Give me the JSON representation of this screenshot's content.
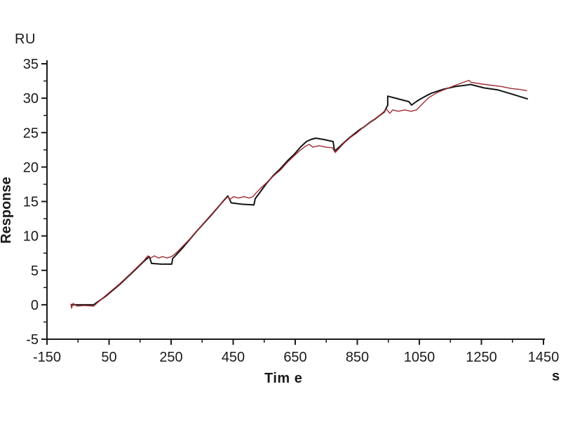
{
  "figure": {
    "y_unit_label": "RU",
    "y_axis_title": "Response",
    "x_axis_title": "Tim e",
    "x_unit_label": "s"
  },
  "colors": {
    "axis": "#1a1a1a",
    "tick_text": "#1a1a1a",
    "background": "#ffffff",
    "fit_curve": "#141414",
    "measured_curve": "#a12c32"
  },
  "chart_data": {
    "type": "line",
    "title": "",
    "xlabel": "Tim e",
    "ylabel": "Response",
    "x_unit": "s",
    "y_unit": "RU",
    "xlim": [
      -150,
      1450
    ],
    "ylim": [
      -5,
      35
    ],
    "x_major_ticks": [
      -150,
      50,
      250,
      450,
      650,
      850,
      1050,
      1250,
      1450
    ],
    "x_minor_step": 100,
    "y_major_ticks": [
      -5,
      0,
      5,
      10,
      15,
      20,
      25,
      30,
      35
    ],
    "y_minor_step": 2.5,
    "grid": false,
    "legend_position": "none",
    "series": [
      {
        "name": "fitted-curve",
        "color": "#141414",
        "stroke_width": 2,
        "points": [
          [
            -71,
            0.0
          ],
          [
            0,
            0.0
          ],
          [
            38,
            1.2
          ],
          [
            83,
            2.9
          ],
          [
            128,
            4.8
          ],
          [
            162,
            6.3
          ],
          [
            180,
            7.0
          ],
          [
            187,
            6.0
          ],
          [
            218,
            5.9
          ],
          [
            252,
            5.9
          ],
          [
            255,
            6.7
          ],
          [
            286,
            8.2
          ],
          [
            331,
            10.6
          ],
          [
            377,
            12.9
          ],
          [
            417,
            15.0
          ],
          [
            433,
            15.8
          ],
          [
            444,
            14.8
          ],
          [
            478,
            14.6
          ],
          [
            517,
            14.5
          ],
          [
            521,
            15.4
          ],
          [
            557,
            17.6
          ],
          [
            580,
            18.8
          ],
          [
            603,
            19.8
          ],
          [
            625,
            20.9
          ],
          [
            648,
            21.9
          ],
          [
            667,
            22.9
          ],
          [
            686,
            23.7
          ],
          [
            700,
            24.0
          ],
          [
            716,
            24.2
          ],
          [
            743,
            24.0
          ],
          [
            772,
            23.7
          ],
          [
            777,
            22.3
          ],
          [
            806,
            23.5
          ],
          [
            823,
            24.2
          ],
          [
            840,
            24.8
          ],
          [
            857,
            25.4
          ],
          [
            874,
            25.9
          ],
          [
            891,
            26.5
          ],
          [
            908,
            27.0
          ],
          [
            922,
            27.5
          ],
          [
            937,
            28.0
          ],
          [
            948,
            29.0
          ],
          [
            948,
            30.3
          ],
          [
            982,
            29.9
          ],
          [
            1016,
            29.5
          ],
          [
            1025,
            29.0
          ],
          [
            1040,
            29.5
          ],
          [
            1054,
            29.9
          ],
          [
            1070,
            30.3
          ],
          [
            1088,
            30.7
          ],
          [
            1107,
            31.0
          ],
          [
            1127,
            31.3
          ],
          [
            1147,
            31.5
          ],
          [
            1167,
            31.7
          ],
          [
            1185,
            31.8
          ],
          [
            1201,
            31.9
          ],
          [
            1215,
            32.0
          ],
          [
            1258,
            31.5
          ],
          [
            1303,
            31.2
          ],
          [
            1348,
            30.6
          ],
          [
            1398,
            29.9
          ]
        ]
      },
      {
        "name": "measured-response",
        "color": "#a12c32",
        "stroke_width": 1.4,
        "points": [
          [
            -73,
            0.1
          ],
          [
            -71,
            -0.5
          ],
          [
            -66,
            0.2
          ],
          [
            -53,
            -0.2
          ],
          [
            -30,
            -0.1
          ],
          [
            0,
            -0.2
          ],
          [
            38,
            1.3
          ],
          [
            83,
            3.0
          ],
          [
            128,
            4.9
          ],
          [
            162,
            6.4
          ],
          [
            175,
            7.1
          ],
          [
            184,
            6.8
          ],
          [
            196,
            7.1
          ],
          [
            209,
            6.8
          ],
          [
            223,
            7.0
          ],
          [
            236,
            6.8
          ],
          [
            252,
            7.0
          ],
          [
            268,
            7.6
          ],
          [
            309,
            9.5
          ],
          [
            354,
            11.8
          ],
          [
            399,
            14.1
          ],
          [
            433,
            15.7
          ],
          [
            440,
            15.3
          ],
          [
            451,
            15.7
          ],
          [
            467,
            15.5
          ],
          [
            485,
            15.7
          ],
          [
            501,
            15.5
          ],
          [
            514,
            15.7
          ],
          [
            523,
            16.2
          ],
          [
            540,
            17.0
          ],
          [
            557,
            17.7
          ],
          [
            580,
            18.7
          ],
          [
            603,
            19.6
          ],
          [
            625,
            20.7
          ],
          [
            648,
            21.7
          ],
          [
            665,
            22.4
          ],
          [
            682,
            23.0
          ],
          [
            695,
            23.3
          ],
          [
            707,
            22.9
          ],
          [
            727,
            23.1
          ],
          [
            749,
            22.9
          ],
          [
            770,
            22.8
          ],
          [
            779,
            22.1
          ],
          [
            795,
            22.9
          ],
          [
            810,
            23.6
          ],
          [
            828,
            24.3
          ],
          [
            847,
            24.9
          ],
          [
            865,
            25.6
          ],
          [
            883,
            26.2
          ],
          [
            901,
            26.8
          ],
          [
            919,
            27.4
          ],
          [
            932,
            27.9
          ],
          [
            944,
            28.4
          ],
          [
            955,
            27.8
          ],
          [
            964,
            28.3
          ],
          [
            982,
            28.1
          ],
          [
            1003,
            28.3
          ],
          [
            1023,
            28.1
          ],
          [
            1041,
            28.3
          ],
          [
            1054,
            28.9
          ],
          [
            1067,
            29.5
          ],
          [
            1081,
            30.1
          ],
          [
            1096,
            30.5
          ],
          [
            1111,
            30.9
          ],
          [
            1128,
            31.2
          ],
          [
            1145,
            31.5
          ],
          [
            1162,
            31.8
          ],
          [
            1179,
            32.1
          ],
          [
            1192,
            32.3
          ],
          [
            1204,
            32.5
          ],
          [
            1210,
            32.6
          ],
          [
            1217,
            32.3
          ],
          [
            1246,
            32.1
          ],
          [
            1280,
            31.9
          ],
          [
            1314,
            31.7
          ],
          [
            1348,
            31.4
          ],
          [
            1371,
            31.3
          ],
          [
            1396,
            31.1
          ]
        ]
      }
    ]
  }
}
